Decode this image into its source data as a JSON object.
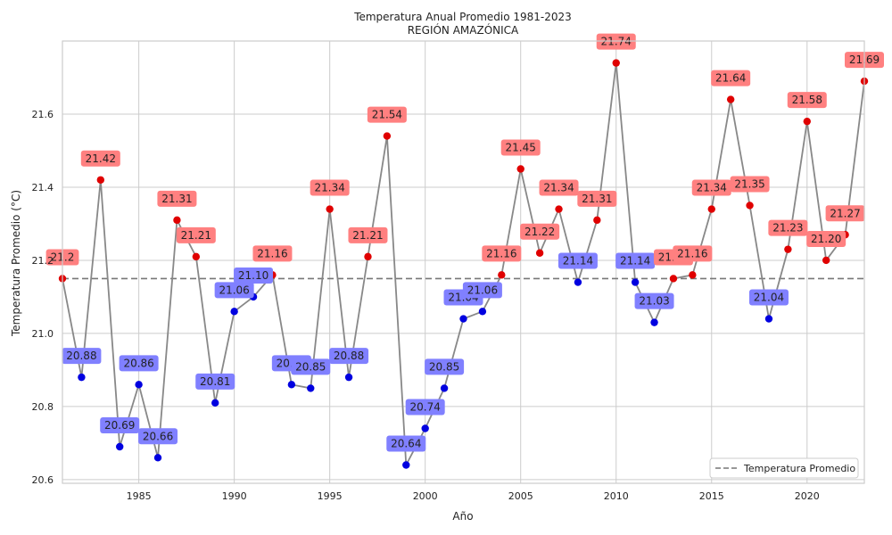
{
  "chart_data": {
    "type": "line",
    "title": "Temperatura Anual Promedio 1981-2023",
    "subtitle": "REGIÓN AMAZÓNICA",
    "xlabel": "Año",
    "ylabel": "Temperatura Promedio (°C)",
    "xlim": [
      1981,
      2023
    ],
    "ylim": [
      20.59,
      21.8
    ],
    "x_ticks": [
      1985,
      1990,
      1995,
      2000,
      2005,
      2010,
      2015,
      2020
    ],
    "y_ticks": [
      20.6,
      20.8,
      21.0,
      21.2,
      21.4,
      21.6
    ],
    "grid": true,
    "x": [
      1981,
      1982,
      1983,
      1984,
      1985,
      1986,
      1987,
      1988,
      1989,
      1990,
      1991,
      1992,
      1993,
      1994,
      1995,
      1996,
      1997,
      1998,
      1999,
      2000,
      2001,
      2002,
      2003,
      2004,
      2005,
      2006,
      2007,
      2008,
      2009,
      2010,
      2011,
      2012,
      2013,
      2014,
      2015,
      2016,
      2017,
      2018,
      2019,
      2020,
      2021,
      2022,
      2023
    ],
    "values": [
      21.15,
      20.88,
      21.42,
      20.69,
      20.86,
      20.66,
      21.31,
      21.21,
      20.81,
      21.06,
      21.1,
      21.16,
      20.86,
      20.85,
      21.34,
      20.88,
      21.21,
      21.54,
      20.64,
      20.74,
      20.85,
      21.04,
      21.06,
      21.16,
      21.45,
      21.22,
      21.34,
      21.14,
      21.31,
      21.74,
      21.14,
      21.03,
      21.15,
      21.16,
      21.34,
      21.64,
      21.35,
      21.04,
      21.23,
      21.58,
      21.2,
      21.27,
      21.69
    ],
    "labels": [
      "21.2",
      "20.88",
      "21.42",
      "20.69",
      "20.86",
      "20.66",
      "21.31",
      "21.21",
      "20.81",
      "21.06",
      "21.10",
      "21.16",
      "20.86",
      "20.85",
      "21.34",
      "20.88",
      "21.21",
      "21.54",
      "20.64",
      "20.74",
      "20.85",
      "21.04",
      "21.06",
      "21.16",
      "21.45",
      "21.22",
      "21.34",
      "21.14",
      "21.31",
      "21.74",
      "21.14",
      "21.03",
      "21.15",
      "21.16",
      "21.34",
      "21.64",
      "21.35",
      "21.04",
      "21.23",
      "21.58",
      "21.20",
      "21.27",
      "21.69"
    ],
    "reference_line": {
      "name": "Temperatura Promedio",
      "value": 21.15
    },
    "colors": {
      "line": "#888888",
      "above": "#e00000",
      "below": "#0000e0",
      "above_box": "#ff8080",
      "below_box": "#8080ff",
      "reference": "#777777",
      "grid": "#cccccc"
    },
    "legend": {
      "position": "bottom-right",
      "entries": [
        "Temperatura Promedio"
      ]
    }
  }
}
